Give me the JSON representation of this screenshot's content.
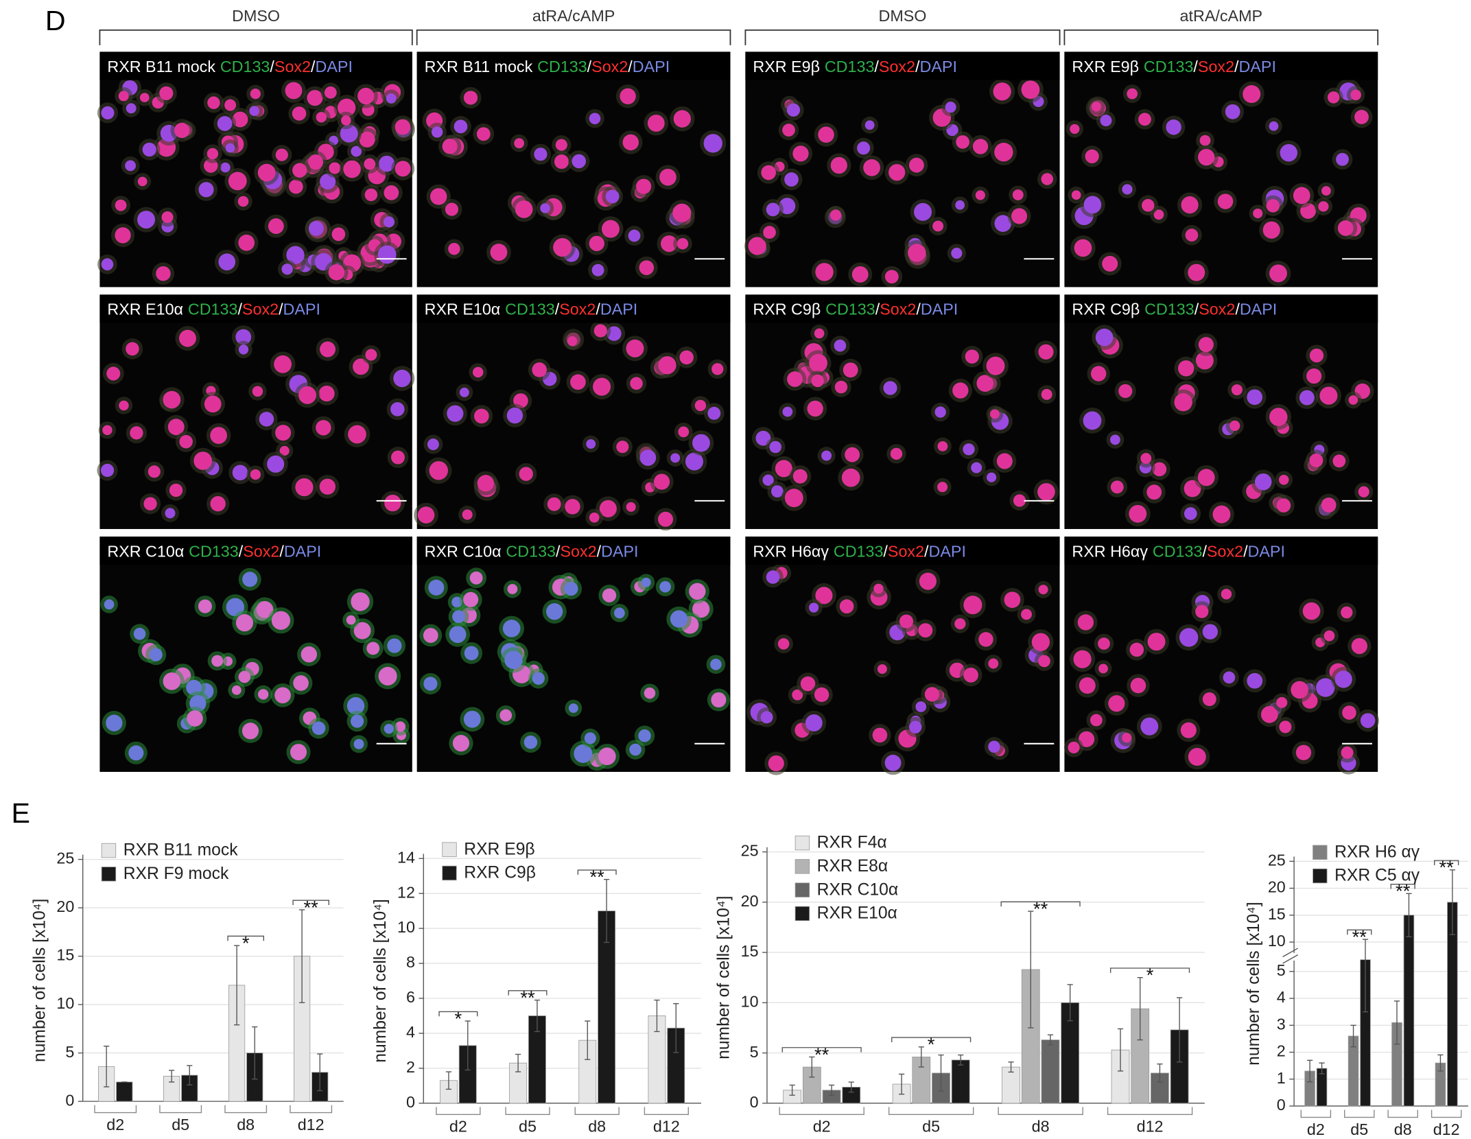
{
  "panel_labels": [
    "D",
    "E"
  ],
  "micrograph_headers": [
    "DMSO",
    "atRA/cAMP",
    "DMSO",
    "atRA/cAMP"
  ],
  "stain_parts": [
    "CD133",
    "/",
    "Sox2",
    "/",
    "DAPI"
  ],
  "stain_colors": [
    "#2fb24a",
    "#ffffff",
    "#ff3030",
    "#ffffff",
    "#7b8ae6"
  ],
  "micrographs": [
    [
      "RXR B11 mock",
      "RXR B11 mock",
      "RXR E9β",
      "RXR E9β"
    ],
    [
      "RXR E10α",
      "RXR E10α",
      "RXR C9β",
      "RXR C9β"
    ],
    [
      "RXR C10α",
      "RXR C10α",
      "RXR H6αγ",
      "RXR H6αγ"
    ]
  ],
  "chart_data": [
    {
      "type": "bar",
      "ylabel": "number of cells [x10⁴]",
      "categories": [
        "d2",
        "d5",
        "d8",
        "d12"
      ],
      "ylim": [
        0,
        25
      ],
      "yticks": [
        0,
        5,
        10,
        15,
        20,
        25
      ],
      "grid": true,
      "legend": "upper left",
      "series": [
        {
          "name": "RXR B11 mock",
          "color": "#e6e6e6",
          "values": [
            3.6,
            2.6,
            12,
            15
          ],
          "errors": [
            2.1,
            0.6,
            4.1,
            4.8
          ]
        },
        {
          "name": "RXR F9 mock",
          "color": "#1a1a1a",
          "values": [
            2,
            2.7,
            5,
            3
          ],
          "errors": [
            0,
            1,
            2.7,
            1.9
          ]
        }
      ],
      "significance": [
        null,
        null,
        "*",
        "**"
      ]
    },
    {
      "type": "bar",
      "ylabel": "number of cells [x10⁴]",
      "categories": [
        "d2",
        "d5",
        "d8",
        "d12"
      ],
      "ylim": [
        0,
        14
      ],
      "yticks": [
        0,
        2,
        4,
        6,
        8,
        10,
        12,
        14
      ],
      "grid": true,
      "legend": "upper left",
      "series": [
        {
          "name": "RXR E9β",
          "color": "#e6e6e6",
          "values": [
            1.3,
            2.3,
            3.6,
            5
          ],
          "errors": [
            0.5,
            0.5,
            1.1,
            0.9
          ]
        },
        {
          "name": "RXR C9β",
          "color": "#1a1a1a",
          "values": [
            3.3,
            5,
            11,
            4.3
          ],
          "errors": [
            1.4,
            0.9,
            1.8,
            1.4
          ]
        }
      ],
      "significance": [
        "*",
        "**",
        "**",
        null
      ]
    },
    {
      "type": "bar",
      "ylabel": "number of cells [x10⁴]",
      "categories": [
        "d2",
        "d5",
        "d8",
        "d12"
      ],
      "ylim": [
        0,
        25
      ],
      "yticks": [
        0,
        5,
        10,
        15,
        20,
        25
      ],
      "grid": true,
      "legend": "upper left",
      "series": [
        {
          "name": "RXR F4α",
          "color": "#e6e6e6",
          "values": [
            1.3,
            1.9,
            3.6,
            5.3
          ],
          "errors": [
            0.5,
            1,
            0.5,
            2.1
          ]
        },
        {
          "name": "RXR E8α",
          "color": "#b3b3b3",
          "values": [
            3.6,
            4.6,
            13.3,
            9.4
          ],
          "errors": [
            1,
            1,
            5.8,
            3.1
          ]
        },
        {
          "name": "RXR C10α",
          "color": "#666666",
          "values": [
            1.3,
            3,
            6.3,
            3
          ],
          "errors": [
            0.5,
            1.8,
            0.5,
            0.9
          ]
        },
        {
          "name": "RXR E10α",
          "color": "#1a1a1a",
          "values": [
            1.6,
            4.3,
            10,
            7.3
          ],
          "errors": [
            0.5,
            0.5,
            1.8,
            3.2
          ]
        }
      ],
      "significance": [
        "**",
        "*",
        "**",
        "*"
      ]
    },
    {
      "type": "bar",
      "ylabel": "number of cells [x10⁴]",
      "categories": [
        "d2",
        "d5",
        "d8",
        "d12"
      ],
      "ylim": [
        0,
        25
      ],
      "yticks": [
        0,
        1,
        2,
        3,
        4,
        5,
        10,
        15,
        20,
        25
      ],
      "axis_break": [
        5,
        10
      ],
      "grid": true,
      "legend": "upper left",
      "series": [
        {
          "name": "RXR H6 αγ",
          "color": "#808080",
          "values": [
            1.3,
            2.6,
            3.1,
            1.6
          ],
          "errors": [
            0.4,
            0.4,
            0.8,
            0.3
          ]
        },
        {
          "name": "RXR C5 αγ",
          "color": "#1a1a1a",
          "values": [
            1.4,
            7,
            15,
            17.4
          ],
          "errors": [
            0.2,
            3.5,
            4,
            6
          ]
        }
      ],
      "significance": [
        null,
        "**",
        "**",
        "**"
      ]
    }
  ]
}
